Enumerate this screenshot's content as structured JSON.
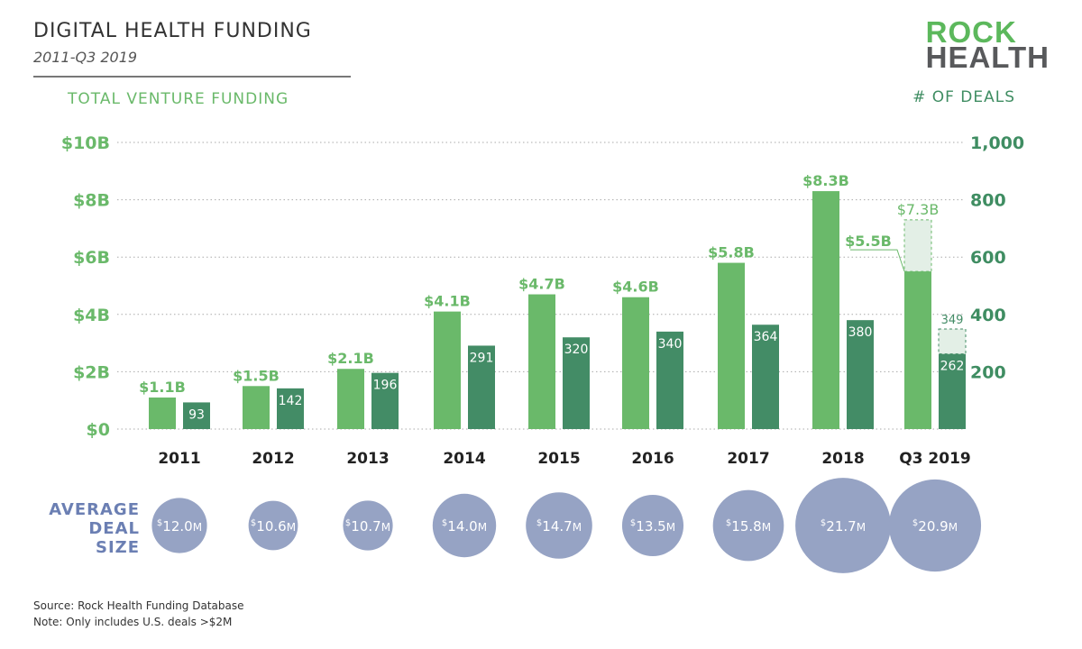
{
  "header": {
    "title": "DIGITAL HEALTH FUNDING",
    "subtitle": "2011-Q3 2019"
  },
  "logo": {
    "line1": "ROCK",
    "line2": "HEALTH"
  },
  "colors": {
    "funding": "#6ab96a",
    "deals": "#438c66",
    "projected": "#e3efe6",
    "bubble": "#96a3c4",
    "right_axis": "#3f8d62"
  },
  "footer": {
    "source": "Source: Rock Health Funding Database",
    "note": "Note: Only includes U.S. deals >$2M"
  },
  "chart_data": [
    {
      "type": "bar",
      "ylabel": "TOTAL VENTURE FUNDING",
      "y2label": "# OF DEALS",
      "categories": [
        "2011",
        "2012",
        "2013",
        "2014",
        "2015",
        "2016",
        "2017",
        "2018",
        "Q3 2019"
      ],
      "ylim": [
        0,
        10
      ],
      "y_ticks": [
        "$0",
        "$2B",
        "$4B",
        "$6B",
        "$8B",
        "$10B"
      ],
      "y2lim": [
        0,
        1000
      ],
      "y2_ticks": [
        "200",
        "400",
        "600",
        "800",
        "1,000"
      ],
      "grid": true,
      "series": [
        {
          "name": "TOTAL VENTURE FUNDING",
          "axis": "left",
          "values": [
            1.1,
            1.5,
            2.1,
            4.1,
            4.7,
            4.6,
            5.8,
            8.3,
            5.5
          ],
          "labels": [
            "$1.1B",
            "$1.5B",
            "$2.1B",
            "$4.1B",
            "$4.7B",
            "$4.6B",
            "$5.8B",
            "$8.3B",
            "$5.5B"
          ]
        },
        {
          "name": "# OF DEALS",
          "axis": "right",
          "values": [
            93,
            142,
            196,
            291,
            320,
            340,
            364,
            380,
            262
          ],
          "labels": [
            "93",
            "142",
            "196",
            "291",
            "320",
            "340",
            "364",
            "380",
            "262"
          ]
        }
      ],
      "projected": {
        "funding": 7.3,
        "funding_label": "$7.3B",
        "deals": 349,
        "deals_label": "349"
      }
    },
    {
      "type": "bubble",
      "label": [
        "AVERAGE",
        "DEAL",
        "SIZE"
      ],
      "categories": [
        "2011",
        "2012",
        "2013",
        "2014",
        "2015",
        "2016",
        "2017",
        "2018",
        "Q3 2019"
      ],
      "values": [
        12.0,
        10.6,
        10.7,
        14.0,
        14.7,
        13.5,
        15.8,
        21.7,
        20.9
      ],
      "labels": [
        [
          "$",
          "12.0",
          "M"
        ],
        [
          "$",
          "10.6",
          "M"
        ],
        [
          "$",
          "10.7",
          "M"
        ],
        [
          "$",
          "14.0",
          "M"
        ],
        [
          "$",
          "14.7",
          "M"
        ],
        [
          "$",
          "13.5",
          "M"
        ],
        [
          "$",
          "15.8",
          "M"
        ],
        [
          "$",
          "21.7",
          "M"
        ],
        [
          "$",
          "20.9",
          "M"
        ]
      ]
    }
  ]
}
